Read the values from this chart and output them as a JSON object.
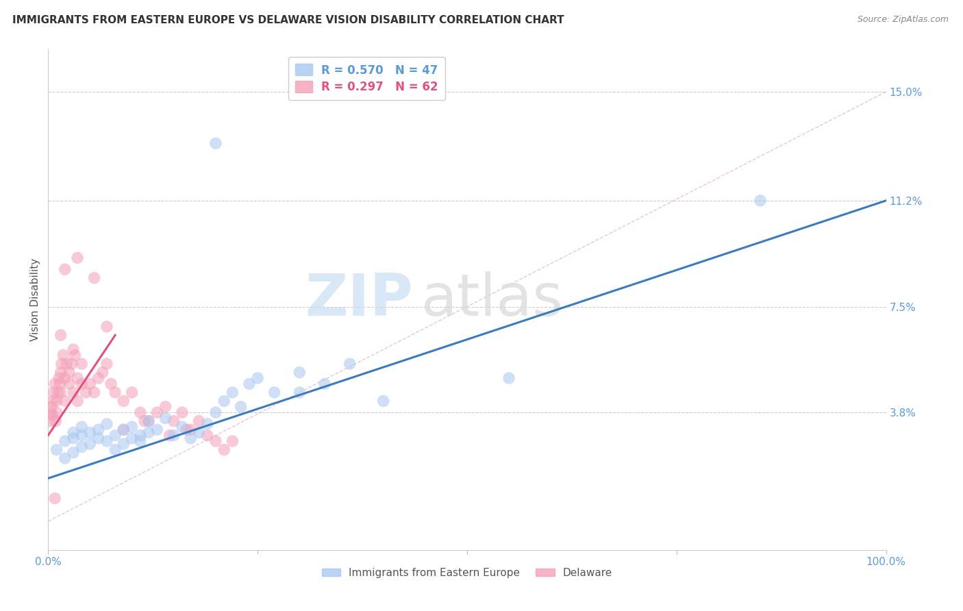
{
  "title": "IMMIGRANTS FROM EASTERN EUROPE VS DELAWARE VISION DISABILITY CORRELATION CHART",
  "source": "Source: ZipAtlas.com",
  "ylabel": "Vision Disability",
  "watermark_zip": "ZIP",
  "watermark_atlas": "atlas",
  "legend_series": [
    {
      "label": "Immigrants from Eastern Europe",
      "R": 0.57,
      "N": 47,
      "color": "#a8c8f0"
    },
    {
      "label": "Delaware",
      "R": 0.297,
      "N": 62,
      "color": "#f4a0b8"
    }
  ],
  "xlim": [
    0,
    100
  ],
  "ylim": [
    -1.0,
    16.5
  ],
  "ytick_vals": [
    3.8,
    7.5,
    11.2,
    15.0
  ],
  "ytick_labels": [
    "3.8%",
    "7.5%",
    "11.2%",
    "15.0%"
  ],
  "xtick_vals": [
    0,
    25,
    50,
    75,
    100
  ],
  "xtick_labels": [
    "0.0%",
    "",
    "",
    "",
    "100.0%"
  ],
  "grid_color": "#cccccc",
  "blue_scatter_x": [
    1,
    2,
    2,
    3,
    3,
    3,
    4,
    4,
    4,
    5,
    5,
    6,
    6,
    7,
    7,
    8,
    8,
    9,
    9,
    10,
    10,
    11,
    11,
    12,
    12,
    13,
    14,
    15,
    16,
    17,
    18,
    19,
    20,
    21,
    22,
    23,
    24,
    25,
    27,
    30,
    33,
    36,
    40,
    85,
    30,
    55,
    20
  ],
  "blue_scatter_y": [
    2.5,
    2.8,
    2.2,
    2.9,
    3.1,
    2.4,
    3.0,
    2.6,
    3.3,
    2.7,
    3.1,
    2.9,
    3.2,
    2.8,
    3.4,
    3.0,
    2.5,
    2.7,
    3.2,
    2.9,
    3.3,
    3.0,
    2.8,
    3.1,
    3.5,
    3.2,
    3.6,
    3.0,
    3.3,
    2.9,
    3.1,
    3.4,
    3.8,
    4.2,
    4.5,
    4.0,
    4.8,
    5.0,
    4.5,
    5.2,
    4.8,
    5.5,
    4.2,
    11.2,
    4.5,
    5.0,
    13.2
  ],
  "pink_scatter_x": [
    0.2,
    0.3,
    0.4,
    0.5,
    0.6,
    0.7,
    0.8,
    0.9,
    1.0,
    1.0,
    1.2,
    1.3,
    1.4,
    1.5,
    1.5,
    1.6,
    1.8,
    2.0,
    2.0,
    2.2,
    2.5,
    2.5,
    2.8,
    3.0,
    3.0,
    3.2,
    3.5,
    3.5,
    4.0,
    4.0,
    4.5,
    5.0,
    5.5,
    6.0,
    6.5,
    7.0,
    7.5,
    8.0,
    9.0,
    10.0,
    11.0,
    12.0,
    13.0,
    14.0,
    15.0,
    16.0,
    17.0,
    18.0,
    19.0,
    20.0,
    21.0,
    22.0,
    3.5,
    5.5,
    2.0,
    1.5,
    7.0,
    9.0,
    11.5,
    14.5,
    16.5,
    0.8
  ],
  "pink_scatter_y": [
    3.5,
    3.8,
    4.0,
    3.7,
    4.2,
    4.5,
    4.8,
    3.5,
    4.2,
    3.8,
    4.5,
    5.0,
    4.8,
    5.2,
    4.5,
    5.5,
    5.8,
    5.0,
    4.2,
    5.5,
    4.8,
    5.2,
    5.5,
    6.0,
    4.5,
    5.8,
    5.0,
    4.2,
    4.8,
    5.5,
    4.5,
    4.8,
    4.5,
    5.0,
    5.2,
    5.5,
    4.8,
    4.5,
    4.2,
    4.5,
    3.8,
    3.5,
    3.8,
    4.0,
    3.5,
    3.8,
    3.2,
    3.5,
    3.0,
    2.8,
    2.5,
    2.8,
    9.2,
    8.5,
    8.8,
    6.5,
    6.8,
    3.2,
    3.5,
    3.0,
    3.2,
    0.8
  ],
  "blue_line_x": [
    0,
    100
  ],
  "blue_line_y": [
    1.5,
    11.2
  ],
  "pink_line_x": [
    0,
    8
  ],
  "pink_line_y": [
    3.0,
    6.5
  ],
  "ref_line_x": [
    0,
    100
  ],
  "ref_line_y": [
    0,
    15.0
  ],
  "blue_color": "#a8c8f0",
  "pink_color": "#f4a0b8",
  "blue_line_color": "#3a7abf",
  "pink_line_color": "#e05080",
  "ref_line_color": "#e0b0c0",
  "tick_label_color": "#5b9bd5",
  "ylabel_color": "#555555",
  "title_color": "#333333",
  "source_color": "#888888"
}
